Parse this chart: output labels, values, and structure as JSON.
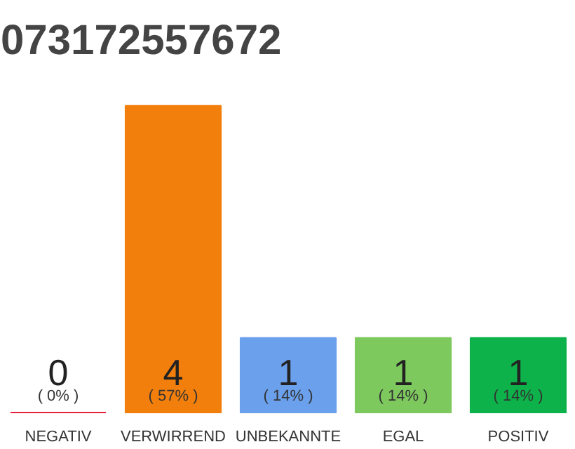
{
  "chart_data": {
    "type": "bar",
    "title": "073172557672",
    "categories": [
      "NEGATIV",
      "VERWIRREND",
      "UNBEKANNTE",
      "EGAL",
      "POSITIV"
    ],
    "values": [
      0,
      57,
      14,
      14,
      14
    ],
    "annotations": [
      "0",
      "4",
      "1",
      "1",
      "1"
    ],
    "colors": [
      "#e8213c",
      "#f27f0c",
      "#6aa0ec",
      "#7dc95e",
      "#0db24a"
    ],
    "value_labels": [
      "( 0% )",
      "( 57% )",
      "( 14% )",
      "( 14% )",
      "( 14% )"
    ],
    "grid": false
  }
}
